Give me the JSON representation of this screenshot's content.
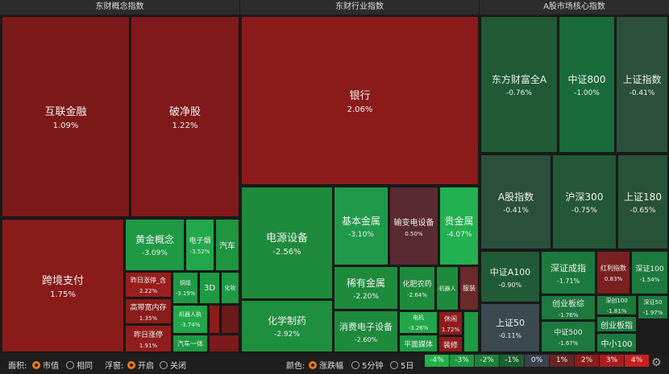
{
  "panels": [
    {
      "title": "东财概念指数",
      "tiles": [
        {
          "name": "互联金融",
          "change": "1.09%"
        },
        {
          "name": "破净股",
          "change": "1.22%"
        },
        {
          "name": "跨境支付",
          "change": "1.75%"
        },
        {
          "name": "黄金概念",
          "change": "-3.09%"
        },
        {
          "name": "电子烟",
          "change": "-3.52%"
        },
        {
          "name": "汽车"
        },
        {
          "name": "昨日涨停_含",
          "change": "2.22%"
        },
        {
          "name": "高带宽内存",
          "change": "1.35%"
        },
        {
          "name": "昨日涨停",
          "change": "1.91%"
        },
        {
          "name": "铜缆",
          "change": "-3.19%"
        },
        {
          "name": "3D"
        },
        {
          "name": "化妆"
        },
        {
          "name": "机器人执",
          "change": "-3.74%"
        },
        {
          "name": "汽车一体"
        }
      ]
    },
    {
      "title": "东财行业指数",
      "tiles": [
        {
          "name": "银行",
          "change": "2.06%"
        },
        {
          "name": "电源设备",
          "change": "-2.56%"
        },
        {
          "name": "化学制药",
          "change": "-2.92%"
        },
        {
          "name": "基本金属",
          "change": "-3.10%"
        },
        {
          "name": "输变电设备",
          "change": "0.50%"
        },
        {
          "name": "贵金属",
          "change": "-4.07%"
        },
        {
          "name": "稀有金属",
          "change": "-2.20%"
        },
        {
          "name": "消费电子设备",
          "change": "-2.60%"
        },
        {
          "name": "化肥农药",
          "change": "-2.64%"
        },
        {
          "name": "机器人"
        },
        {
          "name": "服装"
        },
        {
          "name": "电机",
          "change": "-3.26%"
        },
        {
          "name": "平面媒体"
        },
        {
          "name": "休闲",
          "change": "1.72%"
        },
        {
          "name": "装修"
        }
      ]
    },
    {
      "title": "A股市场核心指数",
      "tiles": [
        {
          "name": "东方财富全A",
          "change": "-0.76%"
        },
        {
          "name": "中证800",
          "change": "-1.00%"
        },
        {
          "name": "上证指数",
          "change": "-0.41%"
        },
        {
          "name": "A股指数",
          "change": "-0.41%"
        },
        {
          "name": "沪深300",
          "change": "-0.75%"
        },
        {
          "name": "上证180",
          "change": "-0.65%"
        },
        {
          "name": "中证A100",
          "change": "-0.90%"
        },
        {
          "name": "上证50",
          "change": "-0.11%"
        },
        {
          "name": "深证成指",
          "change": "-1.71%"
        },
        {
          "name": "创业板综",
          "change": "-1.76%"
        },
        {
          "name": "中证500",
          "change": "-1.67%"
        },
        {
          "name": "红利指数",
          "change": "0.83%"
        },
        {
          "name": "深证100",
          "change": "-1.54%"
        },
        {
          "name": "深创100",
          "change": "-1.81%"
        },
        {
          "name": "深证50",
          "change": "-1.97%"
        },
        {
          "name": "创业板指"
        },
        {
          "name": "中小100"
        }
      ]
    }
  ],
  "toolbar": {
    "area_label": "面积:",
    "area_options": [
      "市值",
      "相同"
    ],
    "float_label": "浮窗:",
    "float_options": [
      "开启",
      "关闭"
    ],
    "color_label": "颜色:",
    "color_options": [
      "涨跌幅",
      "5分钟",
      "5日"
    ],
    "scale": [
      "-4%",
      "-3%",
      "-2%",
      "-1%",
      "0%",
      "1%",
      "2%",
      "3%",
      "4%"
    ]
  }
}
